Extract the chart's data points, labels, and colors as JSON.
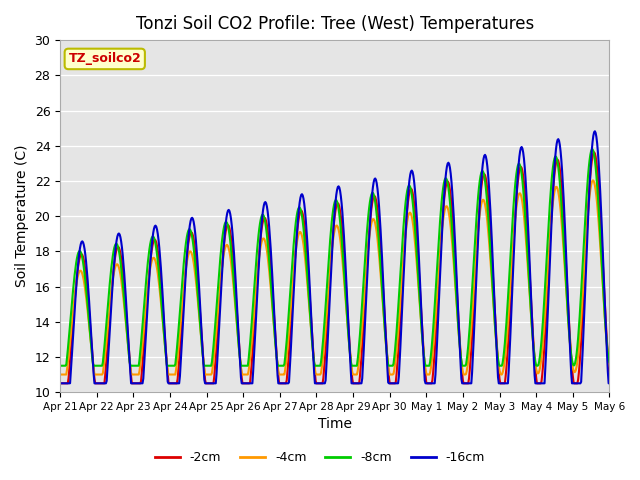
{
  "title": "Tonzi Soil CO2 Profile: Tree (West) Temperatures",
  "xlabel": "Time",
  "ylabel": "Soil Temperature (C)",
  "ylim": [
    10,
    30
  ],
  "legend_label": "TZ_soilco2",
  "legend_bg": "#ffffcc",
  "legend_edge": "#bbbb00",
  "plot_bg": "#e5e5e5",
  "series_labels": [
    "-2cm",
    "-4cm",
    "-8cm",
    "-16cm"
  ],
  "series_colors": [
    "#dd0000",
    "#ff9900",
    "#00cc00",
    "#0000cc"
  ],
  "series_lw": [
    1.5,
    1.5,
    1.5,
    1.5
  ],
  "xtick_labels": [
    "Apr 21",
    "Apr 22",
    "Apr 23",
    "Apr 24",
    "Apr 25",
    "Apr 26",
    "Apr 27",
    "Apr 28",
    "Apr 29",
    "Apr 30",
    "May 1",
    "May 2",
    "May 3",
    "May 4",
    "May 5",
    "May 6"
  ],
  "yticks": [
    10,
    12,
    14,
    16,
    18,
    20,
    22,
    24,
    26,
    28,
    30
  ]
}
